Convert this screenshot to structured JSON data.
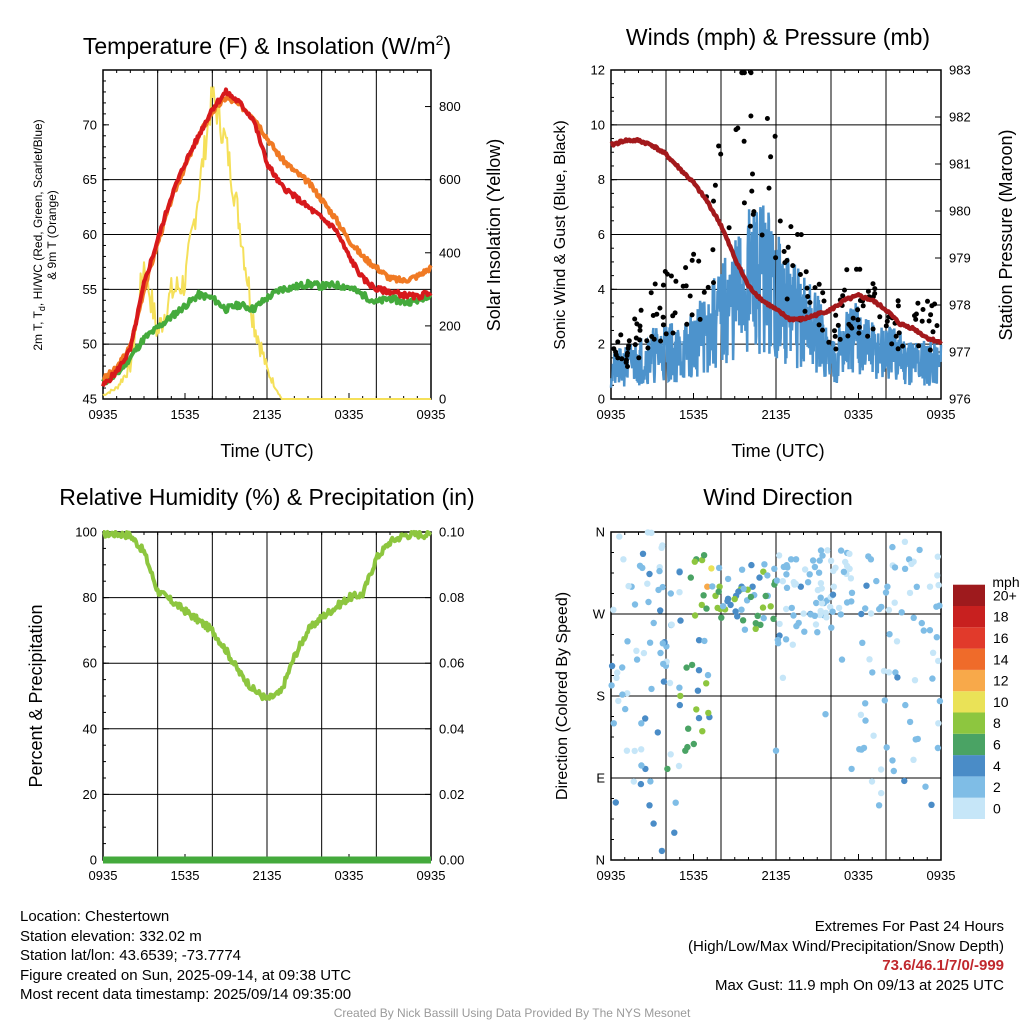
{
  "colors": {
    "t2m": "#d7191c",
    "td": "#44aa3c",
    "hiwc": "#c0282d",
    "t9m": "#f07a24",
    "insolation": "#f5e05a",
    "wind": "#4d93cc",
    "gust": "#000000",
    "pressure": "#a3191c",
    "rh": "#8dc63f",
    "precip": "#44aa3c",
    "extremes": "#c0282d",
    "credit": "#9a9a9a"
  },
  "charts": {
    "temp": {
      "title": "Temperature (F) & Insolation (W/m",
      "title_sup": "2",
      "title_end": ")",
      "ylabel_left_line1": "2m T, T",
      "ylabel_left_sub": "d",
      "ylabel_left_rest": ", HI/WC (Red, Green, Scarlet/Blue)",
      "ylabel_left_line2": "& 9m T (Orange)",
      "ylabel_right": "Solar Insolation (Yellow)",
      "xlabel": "Time (UTC)",
      "xticks": [
        "0935",
        "1535",
        "2135",
        "0335",
        "0935"
      ],
      "yticks_left": [
        "45",
        "50",
        "55",
        "60",
        "65",
        "70"
      ],
      "yticks_right": [
        "0",
        "200",
        "400",
        "600",
        "800"
      ]
    },
    "wind": {
      "title": "Winds (mph) & Pressure (mb)",
      "ylabel_left": "Sonic Wind & Gust (Blue, Black)",
      "ylabel_right": "Station Pressure (Maroon)",
      "xlabel": "Time (UTC)",
      "xticks": [
        "0935",
        "1535",
        "2135",
        "0335",
        "0935"
      ],
      "yticks_left": [
        "0",
        "2",
        "4",
        "6",
        "8",
        "10",
        "12"
      ],
      "yticks_right": [
        "976",
        "977",
        "978",
        "979",
        "980",
        "981",
        "982",
        "983"
      ]
    },
    "rh": {
      "title": "Relative Humidity (%) & Precipitation (in)",
      "ylabel_left": "Percent & Precipitation",
      "xticks": [
        "0935",
        "1535",
        "2135",
        "0335",
        "0935"
      ],
      "yticks_left": [
        "0",
        "20",
        "40",
        "60",
        "80",
        "100"
      ],
      "yticks_right": [
        "0.00",
        "0.02",
        "0.04",
        "0.06",
        "0.08",
        "0.10"
      ]
    },
    "dir": {
      "title": "Wind Direction",
      "ylabel_left": "Direction (Colored By Speed)",
      "xticks": [
        "0935",
        "1535",
        "2135",
        "0335",
        "0935"
      ],
      "yticks_left": [
        "N",
        "E",
        "S",
        "W",
        "N"
      ],
      "legend_title": "mph",
      "legend_labels": [
        "0",
        "2",
        "4",
        "6",
        "8",
        "10",
        "12",
        "14",
        "16",
        "18",
        "20+"
      ],
      "legend_colors": [
        "#c6e6f8",
        "#7fbde6",
        "#4a8cc7",
        "#4aa364",
        "#8dc63f",
        "#eae257",
        "#f8a94a",
        "#ef6b2a",
        "#e13a2b",
        "#c8201f",
        "#9e1a1d"
      ]
    }
  },
  "chart_data": [
    {
      "type": "line",
      "title": "Temperature (F) & Insolation (W/m2)",
      "xlabel": "Time (UTC)",
      "ylabel": "2m T, Td, HI/WC (Red, Green, Scarlet/Blue) & 9m T (Orange)",
      "y2label": "Solar Insolation (Yellow)",
      "x": [
        "0935",
        "1035",
        "1135",
        "1235",
        "1335",
        "1435",
        "1535",
        "1635",
        "1735",
        "1835",
        "1935",
        "2035",
        "2135",
        "2235",
        "2335",
        "0035",
        "0135",
        "0235",
        "0335",
        "0435",
        "0535",
        "0635",
        "0735",
        "0835",
        "0935"
      ],
      "ylim": [
        45,
        75
      ],
      "y2lim": [
        0,
        900
      ],
      "series": [
        {
          "name": "2m T",
          "axis": "left",
          "values": [
            46.2,
            47.5,
            49.5,
            55.5,
            59.5,
            63.5,
            66.5,
            69,
            71.5,
            73,
            72,
            70.5,
            66.5,
            64.5,
            63.5,
            62.5,
            61.5,
            60.5,
            58,
            56,
            55,
            54.8,
            54.5,
            54.3,
            54.8
          ]
        },
        {
          "name": "Td",
          "axis": "left",
          "values": [
            46.5,
            47.2,
            48.8,
            50.5,
            51.5,
            52.5,
            53.5,
            54.5,
            54.2,
            53.2,
            53.6,
            53.2,
            54.2,
            55,
            55.2,
            55.5,
            55.3,
            55.4,
            55.2,
            54.5,
            53.8,
            54.2,
            53.8,
            54,
            54.6
          ]
        },
        {
          "name": "9m T",
          "axis": "left",
          "values": [
            46.8,
            47.8,
            49.8,
            55,
            59.2,
            63.2,
            66.2,
            69,
            71.2,
            72.5,
            71.8,
            70.8,
            68.8,
            67,
            65.8,
            64.8,
            63.2,
            61.5,
            59.5,
            58,
            57,
            56,
            55.8,
            56.2,
            57
          ]
        },
        {
          "name": "Solar Insolation",
          "axis": "right",
          "values": [
            10,
            30,
            90,
            370,
            180,
            290,
            320,
            570,
            830,
            700,
            480,
            220,
            80,
            5,
            0,
            0,
            0,
            0,
            0,
            0,
            0,
            0,
            0,
            0,
            0
          ]
        }
      ]
    },
    {
      "type": "line",
      "title": "Winds (mph) & Pressure (mb)",
      "xlabel": "Time (UTC)",
      "ylabel": "Sonic Wind & Gust (Blue, Black)",
      "y2label": "Station Pressure (Maroon)",
      "x": [
        "0935",
        "1035",
        "1135",
        "1235",
        "1335",
        "1435",
        "1535",
        "1635",
        "1735",
        "1835",
        "1935",
        "2035",
        "2135",
        "2235",
        "2335",
        "0035",
        "0135",
        "0235",
        "0335",
        "0435",
        "0535",
        "0635",
        "0735",
        "0835",
        "0935"
      ],
      "ylim": [
        0,
        12
      ],
      "y2lim": [
        976,
        983
      ],
      "series": [
        {
          "name": "Sonic Wind",
          "axis": "left",
          "values": [
            1,
            1.2,
            1.4,
            1.6,
            1.8,
            1.6,
            2,
            2.4,
            3,
            3.6,
            4.2,
            4.6,
            3.8,
            3.2,
            2.8,
            2.4,
            1.4,
            2,
            2.2,
            1.8,
            1.6,
            1.6,
            1.4,
            1.4,
            1.3
          ]
        },
        {
          "name": "Gust",
          "axis": "left",
          "values": [
            1.5,
            1.8,
            2.4,
            3,
            3.6,
            3.2,
            4,
            5.5,
            7,
            9,
            9.5,
            8,
            6.8,
            5.5,
            4.2,
            3.6,
            2,
            3.5,
            3.8,
            3,
            3.2,
            2.8,
            2.6,
            2.6,
            2.6
          ]
        },
        {
          "name": "Station Pressure",
          "axis": "right",
          "values": [
            981.4,
            981.5,
            981.5,
            981.4,
            981.2,
            980.9,
            980.6,
            980.2,
            979.7,
            979,
            978.4,
            978.1,
            977.9,
            977.7,
            977.7,
            977.8,
            977.9,
            978.1,
            978.2,
            978.1,
            977.9,
            977.6,
            977.5,
            977.3,
            977.2
          ]
        }
      ]
    },
    {
      "type": "line",
      "title": "Relative Humidity (%) & Precipitation (in)",
      "ylabel": "Percent & Precipitation",
      "x": [
        "0935",
        "1035",
        "1135",
        "1235",
        "1335",
        "1435",
        "1535",
        "1635",
        "1735",
        "1835",
        "1935",
        "2035",
        "2135",
        "2235",
        "2335",
        "0035",
        "0135",
        "0235",
        "0335",
        "0435",
        "0535",
        "0635",
        "0735",
        "0835",
        "0935"
      ],
      "ylim": [
        0,
        100
      ],
      "y2lim": [
        0,
        0.1
      ],
      "series": [
        {
          "name": "Relative Humidity",
          "axis": "left",
          "values": [
            99.5,
            99.5,
            99,
            94,
            82,
            79,
            76,
            73,
            70,
            64,
            57,
            52,
            49,
            51,
            62,
            70,
            74,
            77,
            80,
            81,
            92,
            97,
            99,
            99.3,
            99.2
          ]
        },
        {
          "name": "Precipitation",
          "axis": "right",
          "values": [
            0,
            0,
            0,
            0,
            0,
            0,
            0,
            0,
            0,
            0,
            0,
            0,
            0,
            0,
            0,
            0,
            0,
            0,
            0,
            0,
            0,
            0,
            0,
            0,
            0
          ]
        }
      ]
    },
    {
      "type": "scatter",
      "title": "Wind Direction",
      "ylabel": "Direction (Colored By Speed)",
      "x": [
        "0935",
        "1535",
        "2135",
        "0335",
        "0935"
      ],
      "yticks": [
        "N",
        "E",
        "S",
        "W",
        "N"
      ],
      "ylim": [
        0,
        360
      ],
      "points_hours_dir_speed": [
        [
          0.2,
          150,
          1
        ],
        [
          0.4,
          200,
          0
        ],
        [
          0.6,
          355,
          0
        ],
        [
          0.9,
          330,
          0
        ],
        [
          1.2,
          240,
          1
        ],
        [
          1.5,
          300,
          1
        ],
        [
          1.9,
          220,
          1
        ],
        [
          2.2,
          150,
          1
        ],
        [
          2.5,
          100,
          2
        ],
        [
          2.8,
          60,
          2
        ],
        [
          3.1,
          40,
          2
        ],
        [
          3.4,
          140,
          2
        ],
        [
          3.7,
          10,
          2
        ],
        [
          4.1,
          100,
          3
        ],
        [
          4.6,
          30,
          2
        ],
        [
          5.0,
          170,
          2
        ],
        [
          5.4,
          120,
          3
        ],
        [
          5.8,
          310,
          3
        ],
        [
          6.2,
          330,
          3
        ],
        [
          6.6,
          280,
          4
        ],
        [
          7.0,
          300,
          6
        ],
        [
          7.3,
          320,
          5
        ],
        [
          7.6,
          290,
          4
        ],
        [
          7.9,
          300,
          4
        ],
        [
          8.3,
          275,
          4
        ],
        [
          8.7,
          280,
          2
        ],
        [
          9.1,
          290,
          2
        ],
        [
          9.5,
          300,
          2
        ],
        [
          9.9,
          285,
          1
        ],
        [
          10.3,
          300,
          2
        ],
        [
          10.8,
          310,
          2
        ],
        [
          11.4,
          290,
          1
        ],
        [
          12.0,
          120,
          1
        ],
        [
          12.5,
          200,
          0
        ],
        [
          13.1,
          330,
          1
        ],
        [
          13.8,
          300,
          2
        ],
        [
          14.5,
          270,
          2
        ],
        [
          15.0,
          250,
          1
        ],
        [
          15.6,
          160,
          1
        ],
        [
          16.2,
          300,
          0
        ],
        [
          16.8,
          220,
          1
        ],
        [
          17.5,
          100,
          1
        ],
        [
          18.2,
          270,
          2
        ],
        [
          18.9,
          330,
          1
        ],
        [
          19.5,
          60,
          1
        ],
        [
          20.1,
          300,
          1
        ],
        [
          20.8,
          240,
          0
        ],
        [
          21.4,
          170,
          1
        ],
        [
          22.0,
          110,
          0
        ],
        [
          22.6,
          260,
          1
        ],
        [
          23.2,
          300,
          0
        ],
        [
          23.8,
          150,
          0
        ]
      ]
    }
  ],
  "footer": {
    "location": "Location: Chestertown",
    "elevation": "Station elevation: 332.02 m",
    "latlon": "Station lat/lon: 43.6539; -73.7774",
    "created": "Figure created on Sun, 2025-09-14, at 09:38 UTC",
    "recent": "Most recent data timestamp: 2025/09/14 09:35:00",
    "extremes_title": "Extremes For Past 24 Hours",
    "extremes_legend": "(High/Low/Max Wind/Precipitation/Snow Depth)",
    "extremes_values": "73.6/46.1/7/0/-999",
    "max_gust": "Max Gust: 11.9 mph On 09/13 at 2025 UTC",
    "credit": "Created By Nick Bassill Using Data Provided By The NYS Mesonet"
  }
}
